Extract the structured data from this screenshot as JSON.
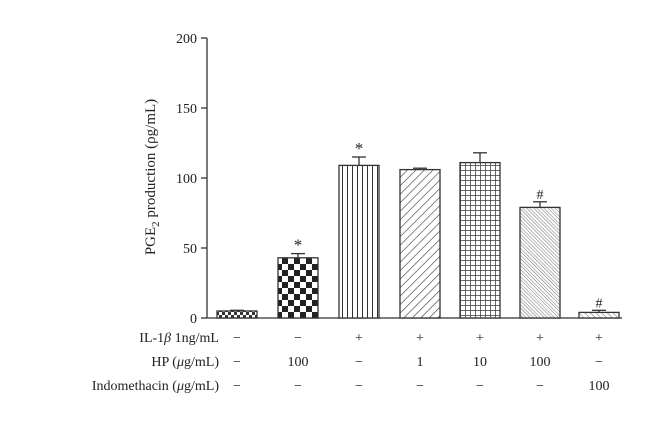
{
  "chart_data": {
    "type": "bar",
    "ylabel_main": "PGE",
    "ylabel_sub": "2",
    "ylabel_rest": " production (ρg/mL)",
    "ylim": [
      0,
      200
    ],
    "yticks": [
      "0",
      "50",
      "100",
      "150",
      "200"
    ],
    "grid": false,
    "legend": "none",
    "bar_color": "#333333",
    "bars": [
      {
        "value": 5,
        "error": 0.5,
        "pattern": "checker-small",
        "annotation": ""
      },
      {
        "value": 43,
        "error": 3,
        "pattern": "checker-large",
        "annotation": "*"
      },
      {
        "value": 109,
        "error": 6,
        "pattern": "vertical",
        "annotation": "*"
      },
      {
        "value": 106,
        "error": 1,
        "pattern": "diag-down",
        "annotation": ""
      },
      {
        "value": 111,
        "error": 7,
        "pattern": "grid",
        "annotation": ""
      },
      {
        "value": 79,
        "error": 4,
        "pattern": "diag-up",
        "annotation": "#"
      },
      {
        "value": 4,
        "error": 1.5,
        "pattern": "diag-fine",
        "annotation": "#"
      }
    ],
    "condition_rows": [
      {
        "label_pre": "IL-1",
        "label_greek": "β",
        "label_post": " 1ng/mL",
        "values": [
          "−",
          "−",
          "+",
          "+",
          "+",
          "+",
          "+"
        ]
      },
      {
        "label_pre": "HP (",
        "label_greek": "μ",
        "label_post": "g/mL)",
        "values": [
          "−",
          "100",
          "−",
          "1",
          "10",
          "100",
          "−"
        ]
      },
      {
        "label_pre": "Indomethacin (",
        "label_greek": "μ",
        "label_post": "g/mL)",
        "values": [
          "−",
          "−",
          "−",
          "−",
          "−",
          "−",
          "100"
        ]
      }
    ]
  }
}
